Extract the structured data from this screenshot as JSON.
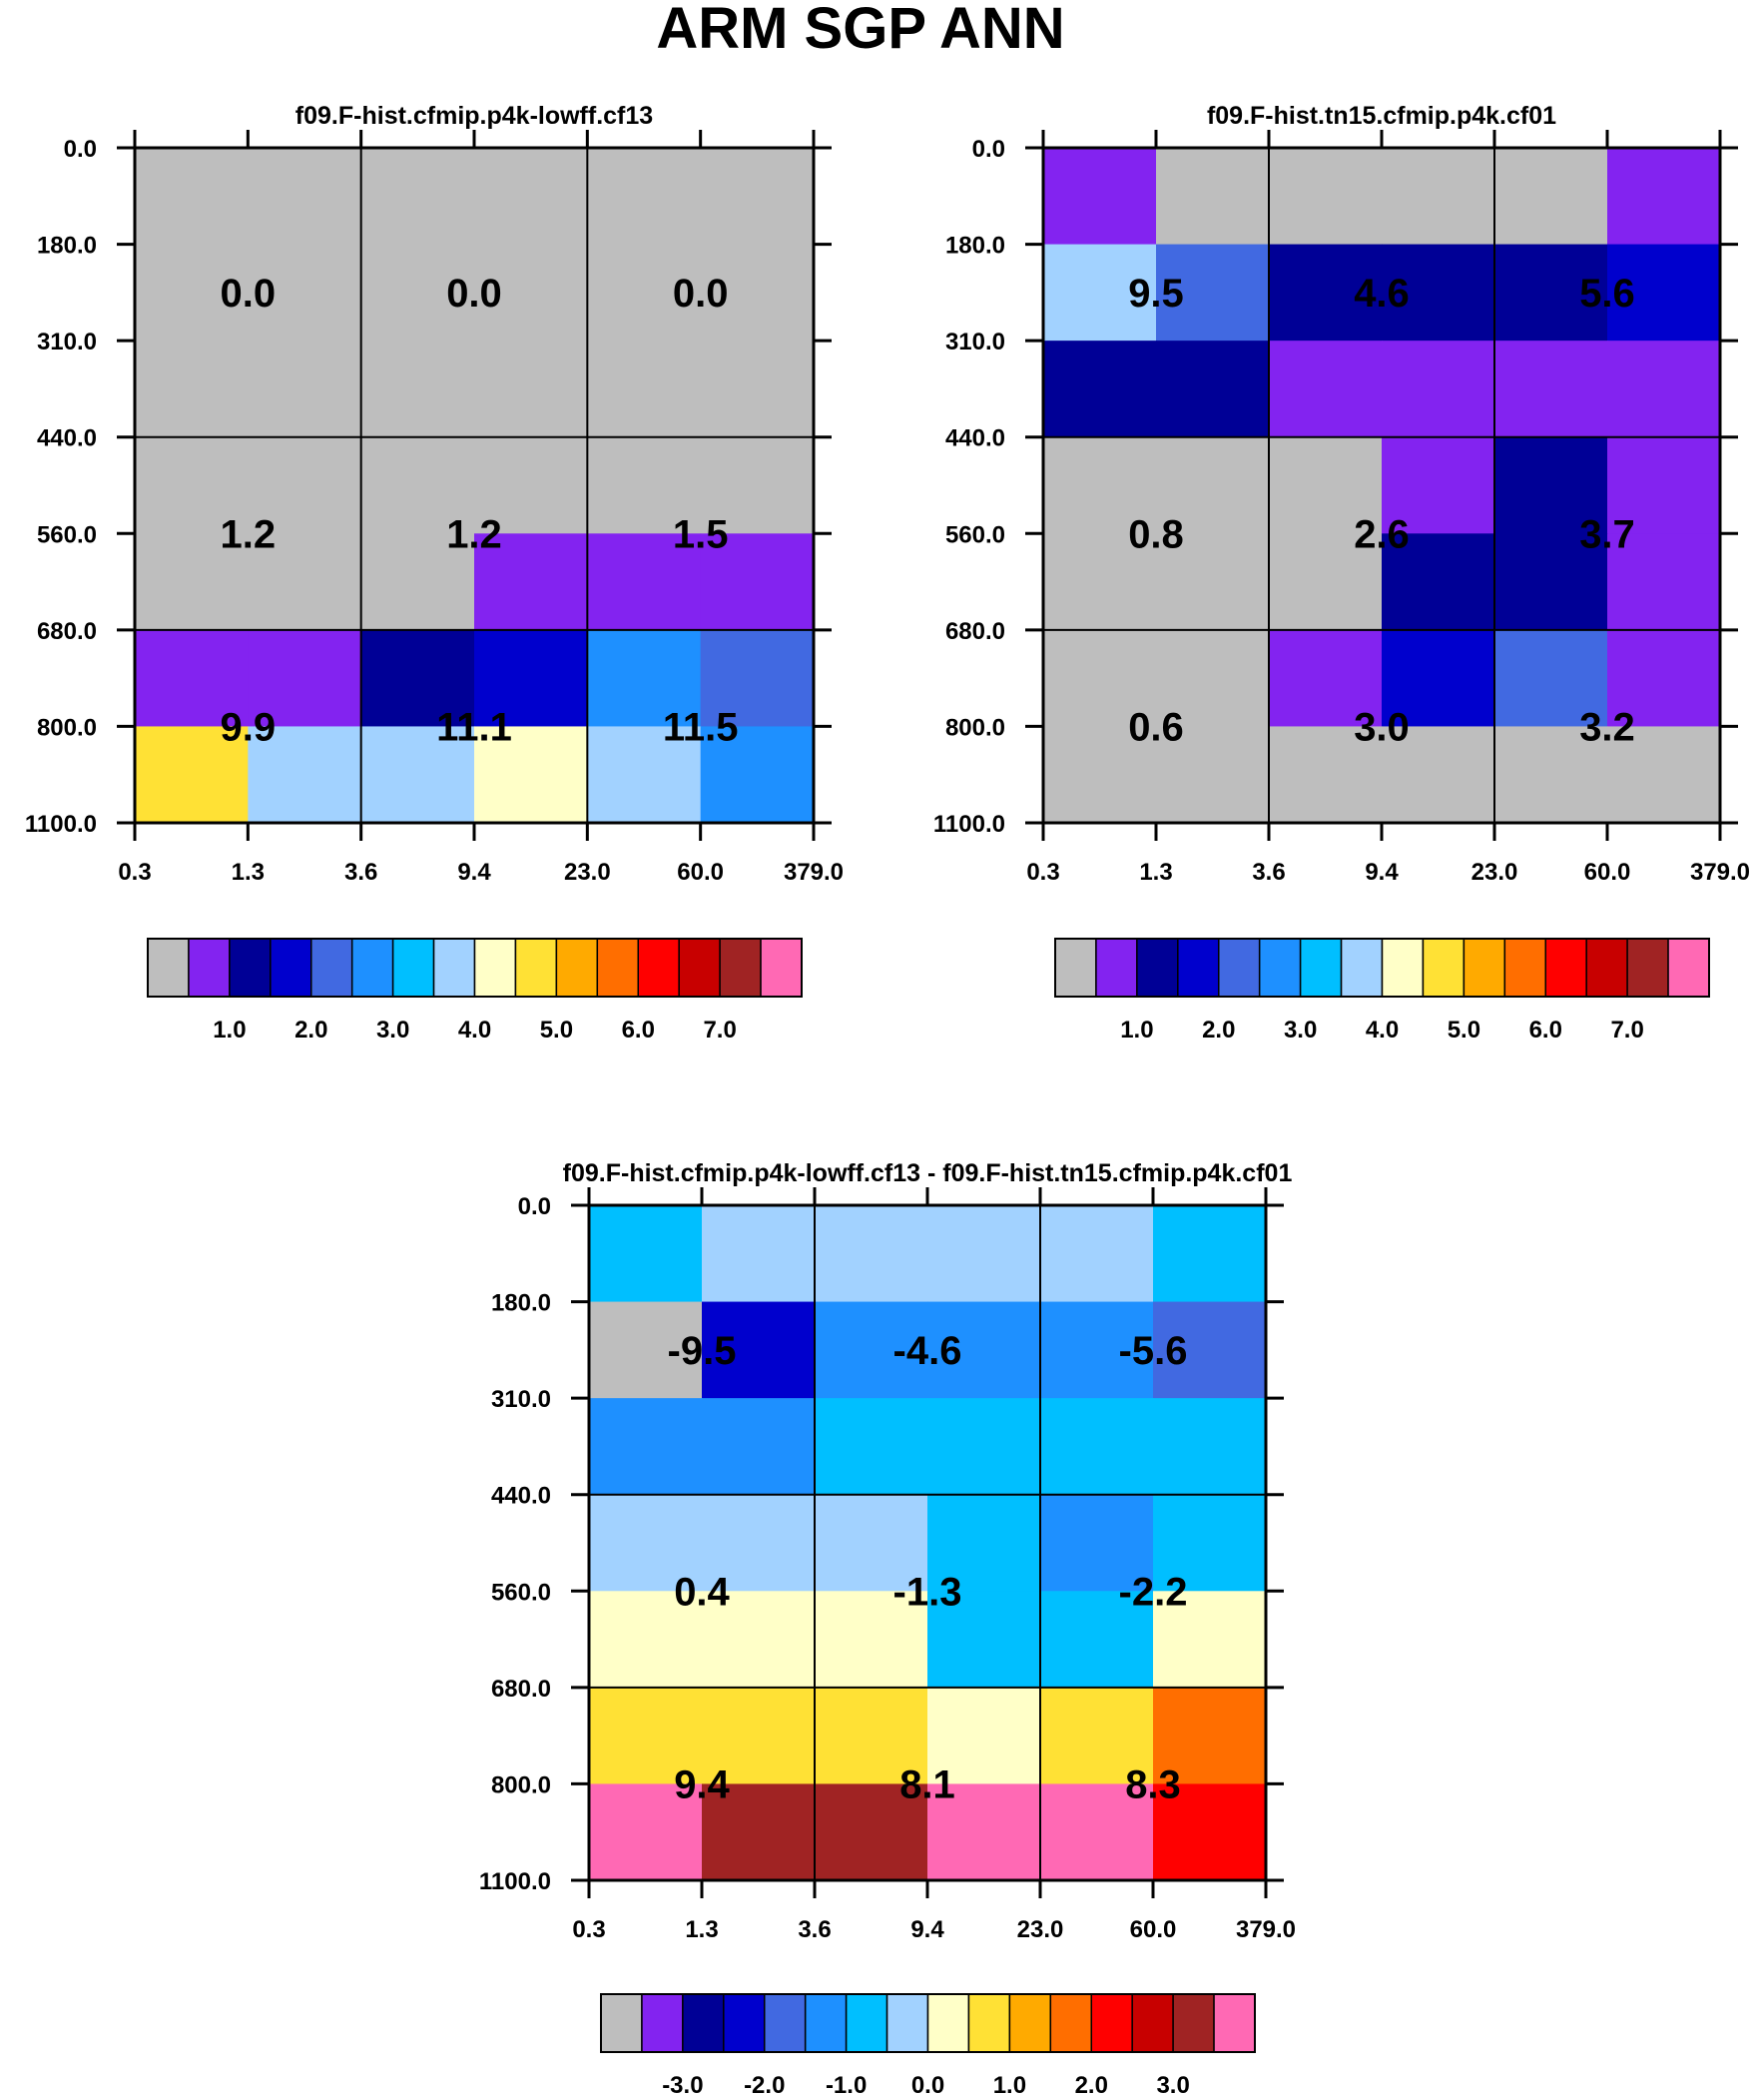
{
  "figure_title": "ARM SGP ANN",
  "colors": {
    "frame": "#000000",
    "background": "#ffffff"
  },
  "chart_data": [
    {
      "type": "heatmap",
      "title": "f09.F-hist.cfmip.p4k-lowff.cf13",
      "x_tick_labels": [
        "0.3",
        "1.3",
        "3.6",
        "9.4",
        "23.0",
        "60.0",
        "379.0"
      ],
      "y_tick_labels": [
        "0.0",
        "180.0",
        "310.0",
        "440.0",
        "560.0",
        "680.0",
        "800.0",
        "1100.0"
      ],
      "cell_colors": [
        [
          "#BEBEBE",
          "#BEBEBE",
          "#BEBEBE",
          "#BEBEBE",
          "#BEBEBE",
          "#BEBEBE"
        ],
        [
          "#BEBEBE",
          "#BEBEBE",
          "#BEBEBE",
          "#BEBEBE",
          "#BEBEBE",
          "#BEBEBE"
        ],
        [
          "#BEBEBE",
          "#BEBEBE",
          "#BEBEBE",
          "#BEBEBE",
          "#BEBEBE",
          "#BEBEBE"
        ],
        [
          "#BEBEBE",
          "#BEBEBE",
          "#BEBEBE",
          "#BEBEBE",
          "#BEBEBE",
          "#BEBEBE"
        ],
        [
          "#BEBEBE",
          "#BEBEBE",
          "#BEBEBE",
          "#8323F0",
          "#8323F0",
          "#8323F0"
        ],
        [
          "#8323F0",
          "#8323F0",
          "#000096",
          "#0000CD",
          "#1E90FF",
          "#4169E1"
        ],
        [
          "#FFE135",
          "#A2D2FF",
          "#A2D2FF",
          "#FFFFC8",
          "#A2D2FF",
          "#1E90FF"
        ]
      ],
      "group_values": [
        [
          "0.0",
          "0.0",
          "0.0"
        ],
        [
          "1.2",
          "1.2",
          "1.5"
        ],
        [
          "9.9",
          "11.1",
          "11.5"
        ]
      ],
      "colorbar": {
        "colors": [
          "#BEBEBE",
          "#8323F0",
          "#000096",
          "#0000CD",
          "#4169E1",
          "#1E90FF",
          "#00BFFF",
          "#A2D2FF",
          "#FFFFC8",
          "#FFE135",
          "#FFAA00",
          "#FF6E00",
          "#FF0000",
          "#C80000",
          "#A02323",
          "#FF69B4"
        ],
        "labels": [
          "1.0",
          "2.0",
          "3.0",
          "4.0",
          "5.0",
          "6.0",
          "7.0"
        ]
      }
    },
    {
      "type": "heatmap",
      "title": "f09.F-hist.tn15.cfmip.p4k.cf01",
      "x_tick_labels": [
        "0.3",
        "1.3",
        "3.6",
        "9.4",
        "23.0",
        "60.0",
        "379.0"
      ],
      "y_tick_labels": [
        "0.0",
        "180.0",
        "310.0",
        "440.0",
        "560.0",
        "680.0",
        "800.0",
        "1100.0"
      ],
      "cell_colors": [
        [
          "#8323F0",
          "#BEBEBE",
          "#BEBEBE",
          "#BEBEBE",
          "#BEBEBE",
          "#8323F0"
        ],
        [
          "#A2D2FF",
          "#4169E1",
          "#000096",
          "#000096",
          "#000096",
          "#0000CD"
        ],
        [
          "#000096",
          "#000096",
          "#8323F0",
          "#8323F0",
          "#8323F0",
          "#8323F0"
        ],
        [
          "#BEBEBE",
          "#BEBEBE",
          "#BEBEBE",
          "#8323F0",
          "#000096",
          "#8323F0"
        ],
        [
          "#BEBEBE",
          "#BEBEBE",
          "#BEBEBE",
          "#000096",
          "#000096",
          "#8323F0"
        ],
        [
          "#BEBEBE",
          "#BEBEBE",
          "#8323F0",
          "#0000CD",
          "#4169E1",
          "#8323F0"
        ],
        [
          "#BEBEBE",
          "#BEBEBE",
          "#BEBEBE",
          "#BEBEBE",
          "#BEBEBE",
          "#BEBEBE"
        ]
      ],
      "group_values": [
        [
          "9.5",
          "4.6",
          "5.6"
        ],
        [
          "0.8",
          "2.6",
          "3.7"
        ],
        [
          "0.6",
          "3.0",
          "3.2"
        ]
      ],
      "colorbar": {
        "colors": [
          "#BEBEBE",
          "#8323F0",
          "#000096",
          "#0000CD",
          "#4169E1",
          "#1E90FF",
          "#00BFFF",
          "#A2D2FF",
          "#FFFFC8",
          "#FFE135",
          "#FFAA00",
          "#FF6E00",
          "#FF0000",
          "#C80000",
          "#A02323",
          "#FF69B4"
        ],
        "labels": [
          "1.0",
          "2.0",
          "3.0",
          "4.0",
          "5.0",
          "6.0",
          "7.0"
        ]
      }
    },
    {
      "type": "heatmap",
      "title": "f09.F-hist.cfmip.p4k-lowff.cf13 - f09.F-hist.tn15.cfmip.p4k.cf01",
      "x_tick_labels": [
        "0.3",
        "1.3",
        "3.6",
        "9.4",
        "23.0",
        "60.0",
        "379.0"
      ],
      "y_tick_labels": [
        "0.0",
        "180.0",
        "310.0",
        "440.0",
        "560.0",
        "680.0",
        "800.0",
        "1100.0"
      ],
      "cell_colors": [
        [
          "#00BFFF",
          "#A2D2FF",
          "#A2D2FF",
          "#A2D2FF",
          "#A2D2FF",
          "#00BFFF"
        ],
        [
          "#BEBEBE",
          "#0000CD",
          "#1E90FF",
          "#1E90FF",
          "#1E90FF",
          "#4169E1"
        ],
        [
          "#1E90FF",
          "#1E90FF",
          "#00BFFF",
          "#00BFFF",
          "#00BFFF",
          "#00BFFF"
        ],
        [
          "#A2D2FF",
          "#A2D2FF",
          "#A2D2FF",
          "#00BFFF",
          "#1E90FF",
          "#00BFFF"
        ],
        [
          "#FFFFC8",
          "#FFFFC8",
          "#FFFFC8",
          "#00BFFF",
          "#00BFFF",
          "#FFFFC8"
        ],
        [
          "#FFE135",
          "#FFE135",
          "#FFE135",
          "#FFFFC8",
          "#FFE135",
          "#FF6E00"
        ],
        [
          "#FF69B4",
          "#A02323",
          "#A02323",
          "#FF69B4",
          "#FF69B4",
          "#FF0000"
        ]
      ],
      "group_values": [
        [
          "-9.5",
          "-4.6",
          "-5.6"
        ],
        [
          "0.4",
          "-1.3",
          "-2.2"
        ],
        [
          "9.4",
          "8.1",
          "8.3"
        ]
      ],
      "colorbar": {
        "colors": [
          "#BEBEBE",
          "#8323F0",
          "#000096",
          "#0000CD",
          "#4169E1",
          "#1E90FF",
          "#00BFFF",
          "#A2D2FF",
          "#FFFFC8",
          "#FFE135",
          "#FFAA00",
          "#FF6E00",
          "#FF0000",
          "#C80000",
          "#A02323",
          "#FF69B4"
        ],
        "labels": [
          "-3.0",
          "-2.0",
          "-1.0",
          "0.0",
          "1.0",
          "2.0",
          "3.0"
        ]
      }
    }
  ]
}
